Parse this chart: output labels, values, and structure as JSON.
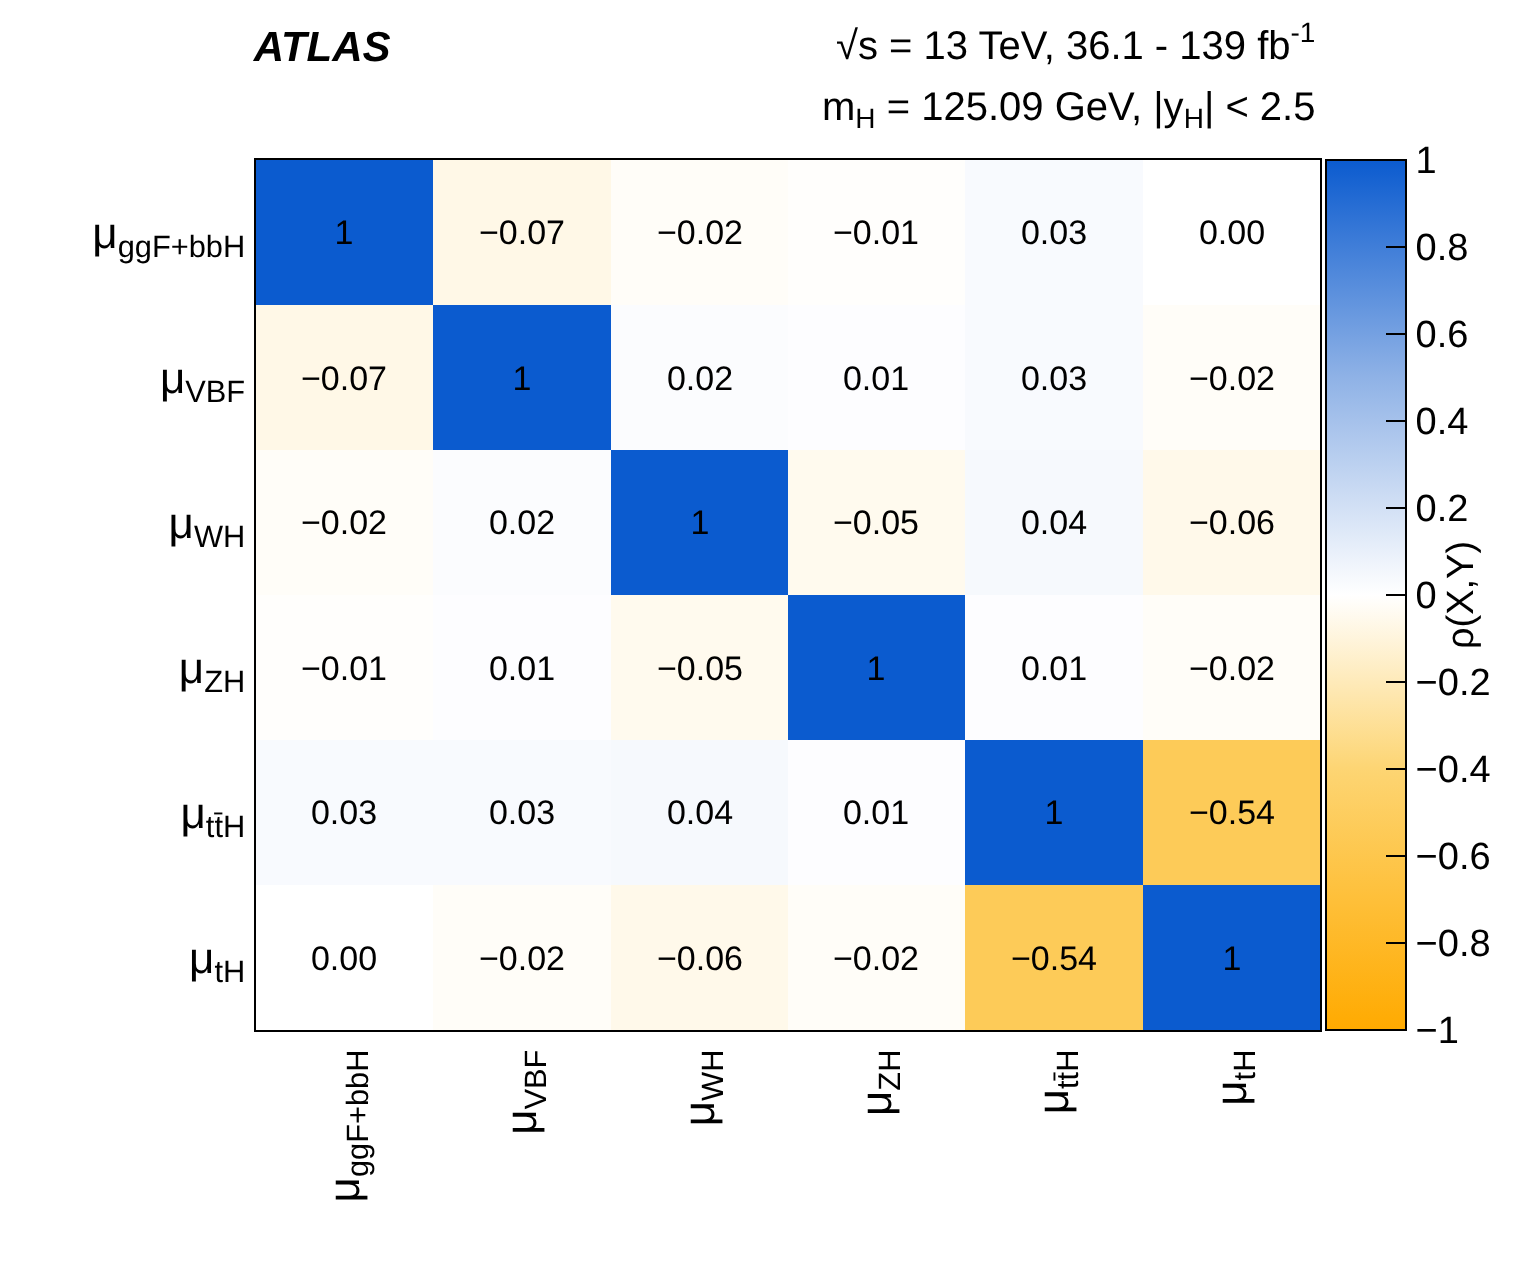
{
  "chart_data": {
    "type": "heatmap",
    "title": "ATLAS",
    "annotations": [
      "√s = 13 TeV, 36.1 - 139 fb$^{-1}$",
      "m$_{H}$ = 125.09 GeV, |y$_{H}$| < 2.5"
    ],
    "categories": [
      "μ$_{ggF+bbH}$",
      "μ$_{VBF}$",
      "μ$_{WH}$",
      "μ$_{ZH}$",
      "μ$_{tt̄H}$",
      "μ$_{tH}$"
    ],
    "y_categories": [
      "μ$_{ggF+bbH}$",
      "μ$_{VBF}$",
      "μ$_{WH}$",
      "μ$_{ZH}$",
      "μ$_{tt̄H}$",
      "μ$_{tH}$"
    ],
    "cells": [
      [
        1,
        -0.07,
        -0.02,
        -0.01,
        0.03,
        0.0
      ],
      [
        -0.07,
        1,
        0.02,
        0.01,
        0.03,
        -0.02
      ],
      [
        -0.02,
        0.02,
        1,
        -0.05,
        0.04,
        -0.06
      ],
      [
        -0.01,
        0.01,
        -0.05,
        1,
        0.01,
        -0.02
      ],
      [
        0.03,
        0.03,
        0.04,
        0.01,
        1,
        -0.54
      ],
      [
        0.0,
        -0.02,
        -0.06,
        -0.02,
        -0.54,
        1
      ]
    ],
    "cell_labels": [
      [
        "1",
        "−0.07",
        "−0.02",
        "−0.01",
        "0.03",
        "0.00"
      ],
      [
        "−0.07",
        "1",
        "0.02",
        "0.01",
        "0.03",
        "−0.02"
      ],
      [
        "−0.02",
        "0.02",
        "1",
        "−0.05",
        "0.04",
        "−0.06"
      ],
      [
        "−0.01",
        "0.01",
        "−0.05",
        "1",
        "0.01",
        "−0.02"
      ],
      [
        "0.03",
        "0.03",
        "0.04",
        "0.01",
        "1",
        "−0.54"
      ],
      [
        "0.00",
        "−0.02",
        "−0.06",
        "−0.02",
        "−0.54",
        "1"
      ]
    ],
    "clabel": "ρ(X,Y)",
    "clim": [
      -1,
      1
    ],
    "cticks": [
      {
        "value": -1,
        "label": "−1"
      },
      {
        "value": -0.8,
        "label": "−0.8"
      },
      {
        "value": -0.6,
        "label": "−0.6"
      },
      {
        "value": -0.4,
        "label": "−0.4"
      },
      {
        "value": -0.2,
        "label": "−0.2"
      },
      0,
      0.2,
      0.4,
      0.6,
      0.8,
      1
    ]
  }
}
